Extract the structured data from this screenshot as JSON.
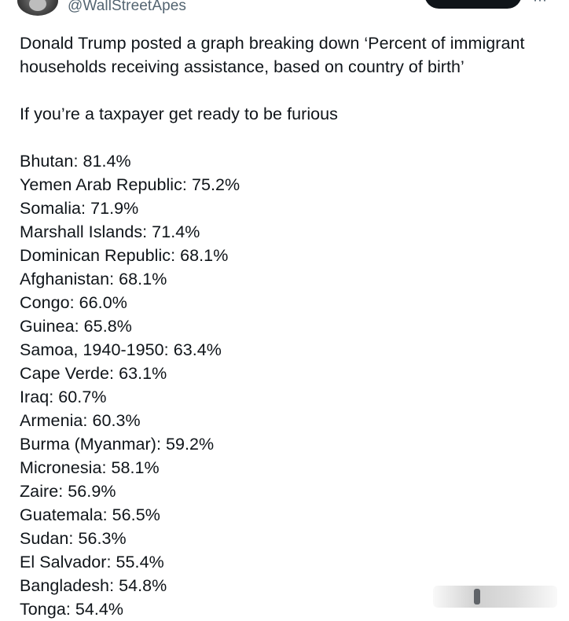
{
  "tweet": {
    "handle": "@WallStreetApes",
    "paragraphs": [
      "Donald Trump posted a graph breaking down ‘Percent of immigrant households receiving assistance, based on country of birth’",
      "If you’re a taxpayer get ready to be furious"
    ],
    "stats": [
      "Bhutan: 81.4%",
      "Yemen Arab Republic: 75.2%",
      "Somalia: 71.9%",
      "Marshall Islands: 71.4%",
      "Dominican Republic: 68.1%",
      "Afghanistan: 68.1%",
      "Congo: 66.0%",
      "Guinea: 65.8%",
      "Samoa, 1940-1950: 63.4%",
      "Cape Verde: 63.1%",
      "Iraq: 60.7%",
      "Armenia: 60.3%",
      "Burma (Myanmar): 59.2%",
      "Micronesia: 58.1%",
      "Zaire: 56.9%",
      "Guatemala: 56.5%",
      "Sudan: 56.3%",
      "El Salvador: 55.4%",
      "Bangladesh: 54.8%",
      "Tonga: 54.4%"
    ]
  },
  "icons": {
    "more": "more-icon",
    "avatar": "avatar"
  }
}
